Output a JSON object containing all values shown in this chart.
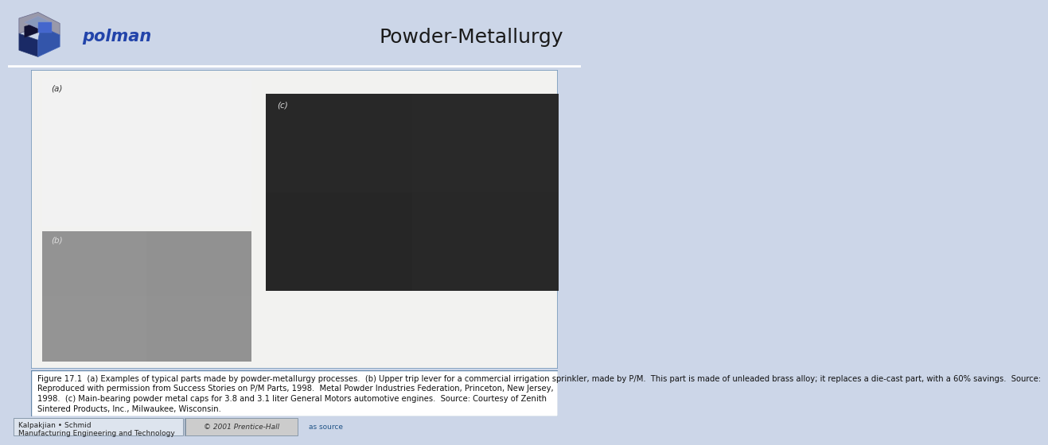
{
  "title": "Powder-Metallurgy",
  "title_fontsize": 18,
  "title_color": "#1a1a1a",
  "header_bg": "#ccd6e8",
  "content_bg": "#f2f2f0",
  "border_color": "#7799bb",
  "caption_text": "Figure 17.1  (a) Examples of typical parts made by powder-metallurgy processes.  (b) Upper trip lever for a commercial irrigation sprinkler, made by P/M.  This part is made of unleaded brass alloy; it replaces a die-cast part, with a 60% savings.  Source:\nReproduced with permission from Success Stories on P/M Parts, 1998.  Metal Powder Industries Federation, Princeton, New Jersey,\n1998.  (c) Main-bearing powder metal caps for 3.8 and 3.1 liter General Motors automotive engines.  Source: Courtesy of Zenith\nSintered Products, Inc., Milwaukee, Wisconsin.",
  "caption_fontsize": 7.2,
  "footer_left_line1": "Kalpakjian • Schmid",
  "footer_left_line2": "Manufacturing Engineering and Technology",
  "footer_center": "© 2001 Prentice-Hall",
  "footer_right": "as source",
  "footer_fontsize": 6.5,
  "polman_text": "polman",
  "label_a": "(a)",
  "label_b": "(b)",
  "label_c": "(c)",
  "img_a_color": "#d8d0c8",
  "img_b_color": "#b0b0b0",
  "img_c_color": "#c0c0c0",
  "img_a_inner": "#303030",
  "img_b_inner": "#505050",
  "img_c_inner": "#808080"
}
